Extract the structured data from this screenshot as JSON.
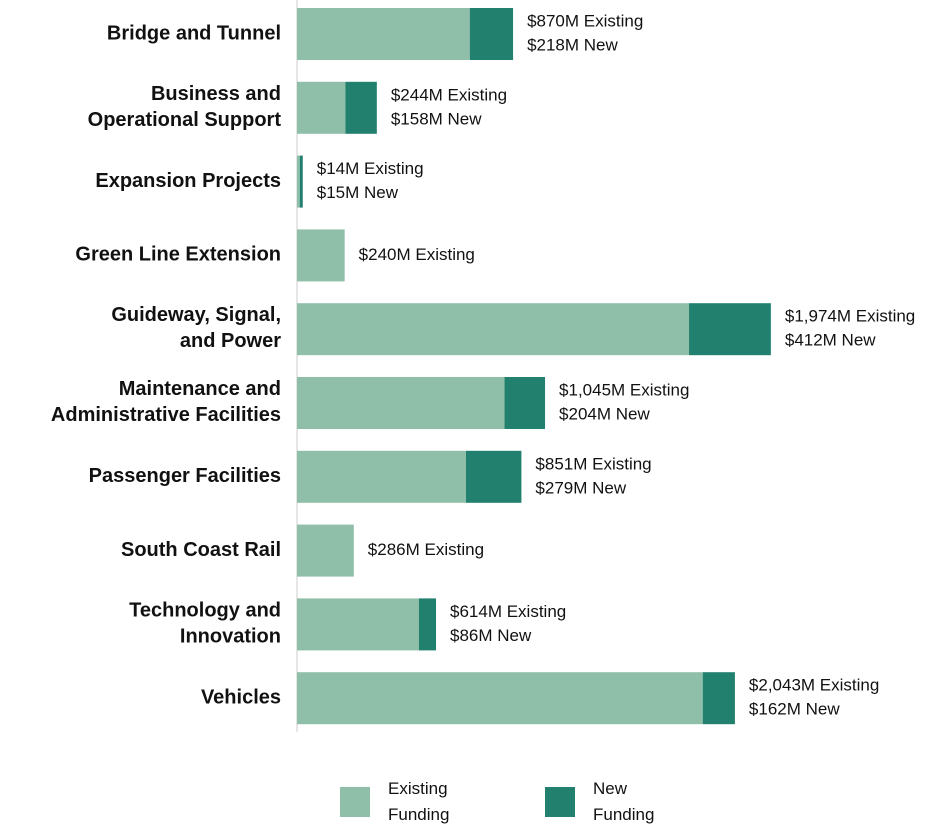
{
  "chart_data": {
    "type": "bar",
    "orientation": "horizontal",
    "stacked": true,
    "categories": [
      "Bridge and Tunnel",
      "Business and\nOperational Support",
      "Expansion Projects",
      "Green Line Extension",
      "Guideway, Signal,\nand Power",
      "Maintenance and\nAdministrative Facilities",
      "Passenger Facilities",
      "South Coast Rail",
      "Technology and\nInnovation",
      "Vehicles"
    ],
    "series": [
      {
        "name": "Existing\nFunding",
        "color": "#8fbfa8",
        "values": [
          870,
          244,
          14,
          240,
          1974,
          1045,
          851,
          286,
          614,
          2043
        ],
        "value_labels": [
          "$870M Existing",
          "$244M Existing",
          "$14M Existing",
          "$240M Existing",
          "$1,974M Existing",
          "$1,045M Existing",
          "$851M Existing",
          "$286M Existing",
          "$614M Existing",
          "$2,043M Existing"
        ]
      },
      {
        "name": "New\nFunding",
        "color": "#22806f",
        "values": [
          218,
          158,
          15,
          null,
          412,
          204,
          279,
          null,
          86,
          162
        ],
        "value_labels": [
          "$218M New",
          "$158M New",
          "$15M New",
          null,
          "$412M New",
          "$204M New",
          "$279M New",
          null,
          "$86M New",
          "$162M New"
        ]
      }
    ],
    "legend": "bottom"
  }
}
